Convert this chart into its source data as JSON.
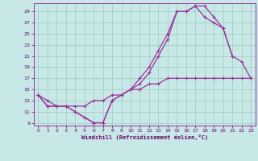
{
  "bg_color": "#c8e8e8",
  "grid_color": "#99ccbb",
  "line_color": "#993399",
  "xlim": [
    -0.5,
    23.5
  ],
  "ylim": [
    8.5,
    30.5
  ],
  "yticks": [
    9,
    11,
    13,
    15,
    17,
    19,
    21,
    23,
    25,
    27,
    29
  ],
  "xticks": [
    0,
    1,
    2,
    3,
    4,
    5,
    6,
    7,
    8,
    9,
    10,
    11,
    12,
    13,
    14,
    15,
    16,
    17,
    18,
    19,
    20,
    21,
    22,
    23
  ],
  "xlabel": "Windchill (Refroidissement éolien,°C)",
  "curve1_x": [
    0,
    1,
    2,
    3,
    4,
    5,
    6,
    7,
    8,
    9,
    10,
    11,
    12,
    13,
    14,
    15,
    16,
    17,
    18,
    19,
    20,
    21
  ],
  "curve1_y": [
    14,
    12,
    12,
    12,
    11,
    10,
    9,
    9,
    13,
    14,
    15,
    17,
    19,
    22,
    25,
    29,
    29,
    30,
    28,
    27,
    26,
    21
  ],
  "curve2_x": [
    0,
    1,
    2,
    3,
    4,
    5,
    6,
    7,
    8,
    9,
    10,
    11,
    12,
    13,
    14,
    15,
    16,
    17,
    18,
    19,
    20,
    21,
    22,
    23
  ],
  "curve2_y": [
    14,
    12,
    12,
    12,
    11,
    10,
    9,
    9,
    13,
    14,
    15,
    16,
    18,
    21,
    24,
    29,
    29,
    30,
    30,
    28,
    26,
    21,
    20,
    17
  ],
  "curve3_x": [
    0,
    1,
    2,
    3,
    4,
    5,
    6,
    7,
    8,
    9,
    10,
    11,
    12,
    13,
    14,
    15,
    16,
    17,
    18,
    19,
    20,
    21,
    22,
    23
  ],
  "curve3_y": [
    14,
    13,
    12,
    12,
    12,
    12,
    13,
    13,
    14,
    14,
    15,
    15,
    16,
    16,
    17,
    17,
    17,
    17,
    17,
    17,
    17,
    17,
    17,
    17
  ]
}
